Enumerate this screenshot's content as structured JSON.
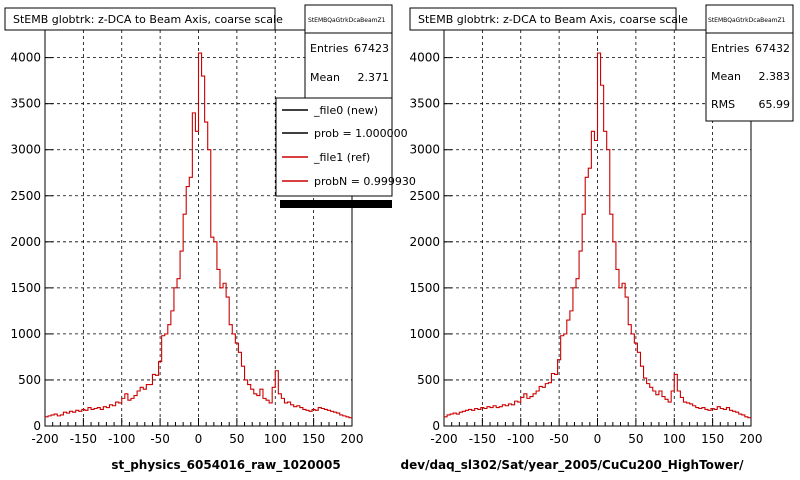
{
  "panels": [
    {
      "title": "StEMB globtrk: z-DCA to Beam Axis, coarse scale",
      "stats_name": "StEMBQaGtrkDcaBeamZ1",
      "stats": [
        {
          "label": "Entries",
          "value": "67423"
        },
        {
          "label": "Mean",
          "value": "2.371"
        }
      ],
      "xlabel": "st_physics_6054016_raw_1020005",
      "legend": [
        {
          "text": "_file0 (new)",
          "color": "#000000"
        },
        {
          "text": "prob = 1.000000",
          "color": "#000000"
        },
        {
          "text": "_file1 (ref)",
          "color": "#cc0000"
        },
        {
          "text": "probN = 0.999930",
          "color": "#cc0000"
        }
      ]
    },
    {
      "title": "StEMB globtrk: z-DCA to Beam Axis, coarse scale",
      "stats_name": "StEMBQaGtrkDcaBeamZ1",
      "stats": [
        {
          "label": "Entries",
          "value": "67432"
        },
        {
          "label": "Mean",
          "value": "2.383"
        },
        {
          "label": "RMS",
          "value": "65.99"
        }
      ],
      "xlabel": "dev/daq_sl302/Sat/year_2005/CuCu200_HighTower/",
      "legend": []
    }
  ],
  "colors": {
    "hist": "#cc0000",
    "grid": "#000000",
    "frame": "#000000"
  },
  "chart_data": [
    {
      "type": "bar",
      "xlim": [
        -200,
        200
      ],
      "ylim": [
        0,
        4300
      ],
      "xticks": [
        -200,
        -150,
        -100,
        -50,
        0,
        50,
        100,
        150,
        200
      ],
      "yticks": [
        0,
        500,
        1000,
        1500,
        2000,
        2500,
        3000,
        3500,
        4000
      ],
      "grid": true,
      "legend_position": "top-right",
      "bin_width": 4,
      "x_start": -200,
      "values": [
        100,
        110,
        120,
        130,
        110,
        120,
        150,
        140,
        160,
        150,
        170,
        160,
        180,
        170,
        200,
        180,
        190,
        200,
        180,
        210,
        200,
        230,
        220,
        260,
        250,
        300,
        350,
        280,
        300,
        330,
        380,
        420,
        400,
        450,
        450,
        560,
        550,
        700,
        980,
        1000,
        1100,
        1250,
        1500,
        1600,
        1900,
        2300,
        2600,
        2700,
        3400,
        3200,
        4050,
        3800,
        3300,
        3000,
        2050,
        2000,
        1700,
        1500,
        1550,
        1400,
        1100,
        1000,
        900,
        800,
        650,
        500,
        450,
        400,
        350,
        330,
        400,
        300,
        280,
        250,
        420,
        600,
        350,
        300,
        250,
        260,
        230,
        210,
        220,
        200,
        180,
        170,
        160,
        180,
        170,
        200,
        190,
        180,
        170,
        160,
        150,
        140,
        120,
        110,
        100,
        90
      ]
    },
    {
      "type": "bar",
      "xlim": [
        -200,
        200
      ],
      "ylim": [
        0,
        4300
      ],
      "xticks": [
        -200,
        -150,
        -100,
        -50,
        0,
        50,
        100,
        150,
        200
      ],
      "yticks": [
        0,
        500,
        1000,
        1500,
        2000,
        2500,
        3000,
        3500,
        4000
      ],
      "grid": true,
      "bin_width": 4,
      "x_start": -200,
      "values": [
        100,
        120,
        130,
        140,
        130,
        150,
        160,
        170,
        180,
        170,
        190,
        180,
        200,
        190,
        210,
        200,
        220,
        200,
        210,
        230,
        220,
        240,
        230,
        270,
        260,
        310,
        350,
        300,
        320,
        350,
        380,
        430,
        420,
        460,
        470,
        570,
        560,
        720,
        980,
        1000,
        1150,
        1250,
        1500,
        1600,
        1900,
        2300,
        2700,
        2800,
        3200,
        3100,
        4050,
        3700,
        3200,
        3000,
        2300,
        2000,
        1700,
        1500,
        1550,
        1400,
        1100,
        1000,
        900,
        800,
        650,
        520,
        460,
        420,
        380,
        340,
        380,
        320,
        290,
        260,
        380,
        560,
        380,
        310,
        260,
        250,
        240,
        220,
        200,
        190,
        200,
        180,
        170,
        190,
        180,
        210,
        190,
        180,
        200,
        170,
        160,
        150,
        130,
        120,
        100,
        90
      ]
    }
  ]
}
